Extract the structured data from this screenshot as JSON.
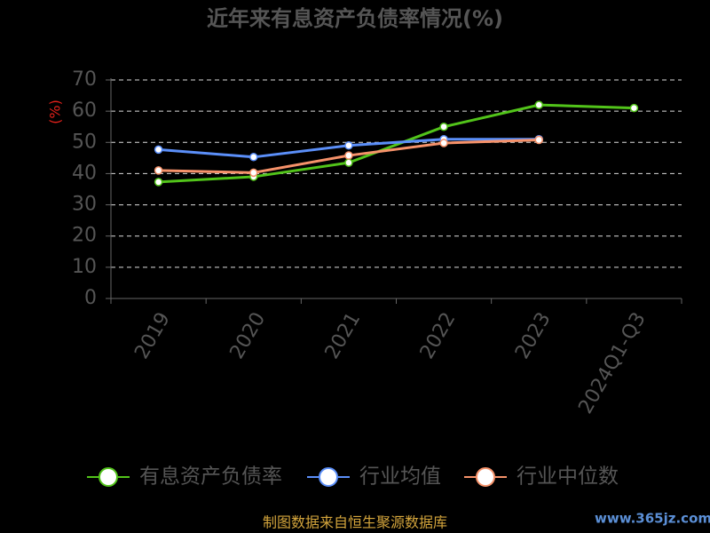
{
  "chart_data": {
    "type": "line",
    "title": "近年来有息资产负债率情况(%)",
    "ylabel": "(%)",
    "categories": [
      "2019",
      "2020",
      "2021",
      "2022",
      "2023",
      "2024Q1-Q3"
    ],
    "series": [
      {
        "name": "有息资产负债率",
        "color": "#52c41a",
        "values": [
          37.3,
          39,
          43.5,
          55,
          62,
          61
        ]
      },
      {
        "name": "行业均值",
        "color": "#5b8ff9",
        "values": [
          47.7,
          45.3,
          49,
          51,
          51,
          null
        ]
      },
      {
        "name": "行业中位数",
        "color": "#f6926a",
        "values": [
          41,
          40.3,
          45.8,
          49.8,
          50.8,
          null
        ]
      }
    ],
    "ylim": [
      0,
      70
    ],
    "yticks": [
      0,
      10,
      20,
      30,
      40,
      50,
      60,
      70
    ],
    "grid": true
  },
  "footer": {
    "source": "制图数据来自恒生聚源数据库",
    "watermark": "www.365jz.com"
  }
}
